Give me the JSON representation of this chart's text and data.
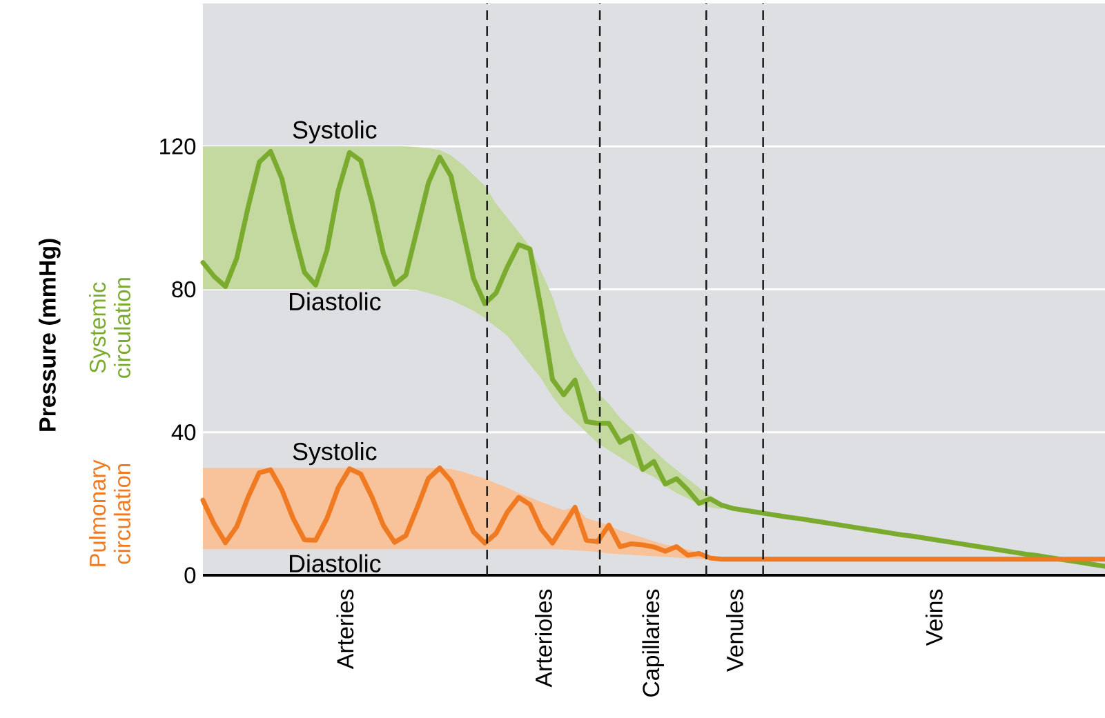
{
  "chart_data": {
    "type": "line",
    "ylabel": "Pressure (mmHg)",
    "categories": [
      null,
      null,
      null,
      null,
      null,
      null,
      null,
      null,
      null,
      null,
      null,
      null,
      null,
      null,
      null,
      null,
      null,
      null,
      null,
      null,
      null,
      null,
      null,
      null,
      null,
      null,
      null,
      null,
      null,
      null,
      null,
      null,
      null,
      null,
      null,
      null,
      null,
      null,
      null,
      null,
      null,
      null,
      null,
      null,
      null,
      null,
      null,
      null,
      null,
      null,
      null,
      null,
      null,
      null,
      null,
      null,
      null,
      null,
      null,
      null,
      null,
      null,
      null,
      null,
      null,
      null,
      null,
      null,
      null,
      null,
      null,
      null,
      null,
      null,
      null,
      null,
      null,
      null,
      null,
      null,
      null
    ],
    "ylim": [
      0,
      160
    ],
    "yticks": [
      0,
      40,
      80,
      120
    ],
    "tick_labels": "y",
    "grid": "y",
    "marker": "none",
    "line_style": "solid",
    "legend": false,
    "series": [
      {
        "name": "Systemic circulation",
        "color": "#7aab2e",
        "values": [
          87.5,
          83.6,
          80.8,
          88.7,
          102.9,
          115.6,
          118.6,
          111,
          97,
          84.8,
          81.2,
          90.9,
          107.6,
          118.3,
          116,
          104.2,
          90.1,
          81.4,
          84,
          96.8,
          109.8,
          117,
          111.7,
          97.3,
          83,
          76,
          79,
          86.3,
          92.5,
          91.3,
          74.4,
          54.8,
          50.5,
          54.6,
          43,
          42.5,
          42.5,
          37.2,
          38.9,
          29.6,
          31.8,
          25.5,
          27,
          23.9,
          20.1,
          21.4,
          19.6,
          18.7,
          18.2,
          17.7,
          17.2,
          16.7,
          16.2,
          15.8,
          15.3,
          14.8,
          14.3,
          13.8,
          13.3,
          12.8,
          12.3,
          11.8,
          11.3,
          10.9,
          10.4,
          9.9,
          9.4,
          8.9,
          8.4,
          7.9,
          7.4,
          6.9,
          6.4,
          5.9,
          5.5,
          5,
          4.5,
          4,
          3.5,
          3,
          2.5
        ],
        "lower": [
          80,
          80,
          80,
          80,
          80,
          80,
          80,
          80,
          80,
          80,
          80,
          80,
          80,
          80,
          80,
          80,
          80,
          80,
          80,
          79.8,
          79,
          78,
          77,
          75.5,
          74,
          72,
          69.5,
          67,
          63,
          59,
          55,
          50,
          46,
          43,
          40,
          37,
          35,
          33,
          31,
          29,
          27.5,
          25,
          23,
          21.5,
          19.8,
          19,
          18.5,
          null,
          null,
          null,
          null,
          null,
          null,
          null,
          null,
          null,
          null,
          null,
          null,
          null,
          null,
          null,
          null,
          null,
          null,
          null,
          null,
          null,
          null,
          null,
          null,
          null,
          null,
          null,
          null,
          null,
          null,
          null,
          null,
          null,
          null
        ],
        "upper": [
          120,
          120,
          120,
          120,
          120,
          120,
          120,
          120,
          120,
          120,
          120,
          120,
          120,
          120,
          120,
          120,
          120,
          120,
          120,
          119.8,
          119.5,
          119,
          117.5,
          115,
          112,
          109,
          104,
          100,
          96,
          92,
          85,
          78,
          68,
          61,
          56,
          51,
          48,
          44,
          41,
          38,
          35,
          32,
          29.5,
          27,
          24.5,
          22,
          20,
          null,
          null,
          null,
          null,
          null,
          null,
          null,
          null,
          null,
          null,
          null,
          null,
          null,
          null,
          null,
          null,
          null,
          null,
          null,
          null,
          null,
          null,
          null,
          null,
          null,
          null,
          null,
          null,
          null,
          null,
          null,
          null,
          null,
          null
        ]
      },
      {
        "name": "Pulmonary circulation",
        "color": "#f07a21",
        "values": [
          21,
          14.3,
          9.1,
          13.6,
          21.8,
          28.7,
          29.5,
          23.9,
          15.9,
          9.9,
          9.8,
          15.9,
          24.5,
          29.8,
          28.3,
          21.8,
          14,
          9.2,
          11.1,
          18.9,
          27.1,
          30,
          26.4,
          19.1,
          12.1,
          9,
          11.7,
          17.7,
          21.8,
          19.8,
          12.9,
          9,
          14,
          19,
          9.8,
          9.4,
          14,
          8,
          8.8,
          8.5,
          7.9,
          6.7,
          8,
          5.6,
          6.1,
          4.8,
          4.5,
          4.5,
          4.5,
          4.5,
          4.5,
          4.5,
          4.5,
          4.5,
          4.5,
          4.5,
          4.5,
          4.5,
          4.5,
          4.5,
          4.5,
          4.5,
          4.5,
          4.5,
          4.5,
          4.5,
          4.5,
          4.5,
          4.5,
          4.5,
          4.5,
          4.5,
          4.5,
          4.5,
          4.5,
          4.5,
          4.5,
          4.5,
          4.5,
          4.5,
          4.5
        ],
        "lower": [
          7.3,
          7.3,
          7.3,
          7.3,
          7.3,
          7.3,
          7.3,
          7.3,
          7.3,
          7.3,
          7.3,
          7.3,
          7.3,
          7.3,
          7.3,
          7.3,
          7.3,
          7.3,
          7.3,
          7.3,
          7.3,
          7.3,
          7.3,
          7.3,
          7.3,
          7.3,
          7.3,
          7.3,
          7.3,
          7.3,
          7.3,
          7.3,
          7.2,
          7,
          6.8,
          6.5,
          6.1,
          5.9,
          5.7,
          5.5,
          5.3,
          5.1,
          4.9,
          4.7,
          4.6,
          4.4,
          null,
          null,
          null,
          null,
          null,
          null,
          null,
          null,
          null,
          null,
          null,
          null,
          null,
          null,
          null,
          null,
          null,
          null,
          null,
          null,
          null,
          null,
          null,
          null,
          null,
          null,
          null,
          null,
          null,
          null,
          null,
          null,
          null,
          null,
          null
        ],
        "upper": [
          30,
          30,
          30,
          30,
          30,
          30,
          30,
          30,
          30,
          30,
          30,
          30,
          30,
          30,
          30,
          30,
          30,
          30,
          30,
          30,
          30,
          30,
          29.7,
          29,
          28,
          27,
          25.7,
          24.5,
          23,
          21.8,
          20.5,
          19.3,
          18.2,
          19.2,
          16,
          15,
          14,
          12.5,
          11.5,
          10.5,
          9.5,
          8.6,
          8,
          7.2,
          6.3,
          5.2,
          null,
          null,
          null,
          null,
          null,
          null,
          null,
          null,
          null,
          null,
          null,
          null,
          null,
          null,
          null,
          null,
          null,
          null,
          null,
          null,
          null,
          null,
          null,
          null,
          null,
          null,
          null,
          null,
          null,
          null,
          null,
          null,
          null,
          null,
          null
        ]
      }
    ],
    "annotations": [
      "Systolic",
      "Diastolic",
      "Systolic",
      "Diastolic",
      "Arteries",
      "Arterioles",
      "Capillaries",
      "Venules",
      "Veins"
    ]
  }
}
